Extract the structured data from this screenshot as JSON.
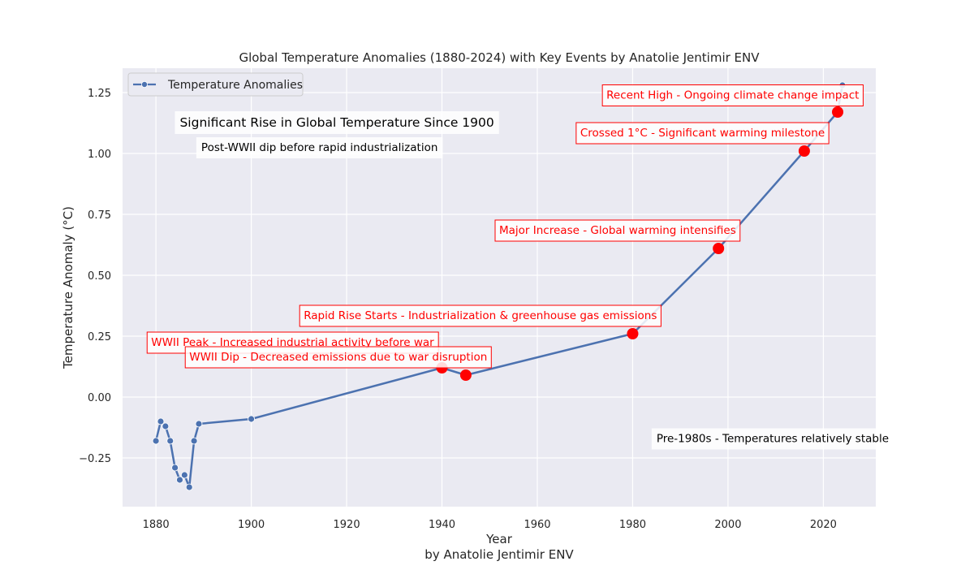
{
  "colors": {
    "plot_background": "#eaeaf2",
    "grid": "#ffffff",
    "line": "#4c72b0",
    "event_marker": "#ff0000",
    "event_text": "#ff0000",
    "event_box_edge": "#ff0000"
  },
  "chart_data": {
    "type": "line",
    "title": "Global Temperature Anomalies (1880-2024) with Key Events by Anatolie Jentimir ENV",
    "xlabel": "Year",
    "xlabel_sub": "by Anatolie Jentimir ENV",
    "ylabel": "Temperature Anomaly (°C)",
    "xlim": [
      1873,
      2031
    ],
    "ylim": [
      -0.45,
      1.35
    ],
    "xticks": [
      1880,
      1900,
      1920,
      1940,
      1960,
      1980,
      2000,
      2020
    ],
    "yticks": [
      -0.25,
      0.0,
      0.25,
      0.5,
      0.75,
      1.0,
      1.25
    ],
    "grid": true,
    "legend_position": "top-left",
    "series": [
      {
        "name": "Temperature Anomalies",
        "x": [
          1880,
          1881,
          1882,
          1883,
          1884,
          1885,
          1886,
          1887,
          1888,
          1889,
          1900,
          1940,
          1945,
          1980,
          1998,
          2016,
          2023,
          2024
        ],
        "y": [
          -0.18,
          -0.1,
          -0.12,
          -0.18,
          -0.29,
          -0.34,
          -0.32,
          -0.37,
          -0.18,
          -0.11,
          -0.09,
          0.12,
          0.09,
          0.26,
          0.61,
          1.01,
          1.17,
          1.28
        ]
      }
    ],
    "events": [
      {
        "x": 1940,
        "y": 0.12,
        "label": "WWII Peak - Increased industrial activity before war",
        "label_x": 1879,
        "label_y": 0.21
      },
      {
        "x": 1945,
        "y": 0.09,
        "label": "WWII Dip - Decreased emissions due to war disruption",
        "label_x": 1887,
        "label_y": 0.15
      },
      {
        "x": 1980,
        "y": 0.26,
        "label": "Rapid Rise Starts - Industrialization & greenhouse gas emissions",
        "label_x": 1911,
        "label_y": 0.32
      },
      {
        "x": 1998,
        "y": 0.61,
        "label": "Major Increase - Global warming intensifies",
        "label_x": 1952,
        "label_y": 0.67
      },
      {
        "x": 2016,
        "y": 1.01,
        "label": "Crossed 1°C - Significant warming milestone",
        "label_x": 1969,
        "label_y": 1.07
      },
      {
        "x": 2023,
        "y": 1.17,
        "label": "Recent High - Ongoing climate change impact",
        "label_x": 1974.5,
        "label_y": 1.225
      }
    ],
    "text_annotations": [
      {
        "text": "Significant Rise in Global Temperature Since 1900",
        "x": 1885,
        "y": 1.11,
        "size": "large"
      },
      {
        "text": "Post-WWII dip before rapid industrialization",
        "x": 1889.5,
        "y": 1.01,
        "size": "normal"
      },
      {
        "text": "Pre-1980s - Temperatures relatively stable",
        "x": 1985,
        "y": -0.185,
        "size": "normal"
      }
    ]
  }
}
